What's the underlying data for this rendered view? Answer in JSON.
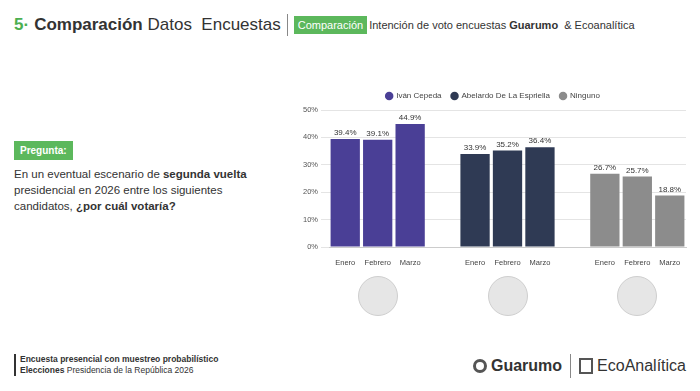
{
  "header": {
    "number": "5·",
    "title": [
      {
        "text": "Comparación",
        "bold": true
      },
      {
        "text": " Datos  Encuestas",
        "bold": false
      }
    ],
    "tag": "Comparación",
    "subtitle": [
      {
        "text": "Intención de voto encuestas ",
        "bold": false
      },
      {
        "text": "Guarumo",
        "bold": true
      },
      {
        "text": "  & Ecoanalítica",
        "bold": false
      }
    ]
  },
  "question": {
    "label": "Pregunta:",
    "text": [
      {
        "text": "En un eventual escenario de ",
        "bold": false
      },
      {
        "text": "segunda vuelta",
        "bold": true
      },
      {
        "text": " presidencial en 2026 entre los siguientes candidatos, ",
        "bold": false
      },
      {
        "text": "¿por cuál votaría?",
        "bold": true
      }
    ]
  },
  "footer": {
    "lines": [
      [
        {
          "text": "Encuesta presencial con muestreo probabilístico",
          "bold": true
        }
      ],
      [
        {
          "text": "Elecciones",
          "bold": true
        },
        {
          "text": " Presidencia de la República 2026",
          "bold": false
        }
      ]
    ],
    "logos": [
      "Guarumo",
      "EcoAnalítica"
    ]
  },
  "chart_data": {
    "type": "bar",
    "categories": [
      "Enero",
      "Febrero",
      "Marzo",
      null,
      "Enero",
      "Febrero",
      "Marzo",
      null,
      "Enero",
      "Febrero",
      "Marzo"
    ],
    "series": [
      {
        "name": "Iván Cepeda",
        "color": "#4a3f96",
        "values": [
          39.4,
          39.1,
          44.9,
          null,
          null,
          null,
          null,
          null,
          null,
          null,
          null
        ],
        "value_labels": [
          "39.4%",
          "39.1%",
          "44.9%",
          null,
          null,
          null,
          null,
          null,
          null,
          null,
          null
        ]
      },
      {
        "name": "Abelardo De La Espriella",
        "color": "#2f3a54",
        "values": [
          null,
          null,
          null,
          null,
          33.9,
          35.2,
          36.4,
          null,
          null,
          null,
          null
        ],
        "value_labels": [
          null,
          null,
          null,
          null,
          "33.9%",
          "35.2%",
          "36.4%",
          null,
          null,
          null,
          null
        ]
      },
      {
        "name": "Ninguno",
        "color": "#8c8c8c",
        "values": [
          null,
          null,
          null,
          null,
          null,
          null,
          null,
          null,
          26.7,
          25.7,
          18.8
        ],
        "value_labels": [
          null,
          null,
          null,
          null,
          null,
          null,
          null,
          null,
          "26.7%",
          "25.7%",
          "18.8%"
        ]
      }
    ],
    "ylim": [
      0,
      50
    ],
    "yticks": [
      {
        "value": 0,
        "label": "0%"
      },
      {
        "value": 10,
        "label": "10%"
      },
      {
        "value": 20,
        "label": "20%"
      },
      {
        "value": 30,
        "label": "30%"
      },
      {
        "value": 40,
        "label": "40%"
      },
      {
        "value": 50,
        "label": "50%"
      }
    ],
    "grid": true,
    "legend": "top",
    "data_labels": true
  }
}
